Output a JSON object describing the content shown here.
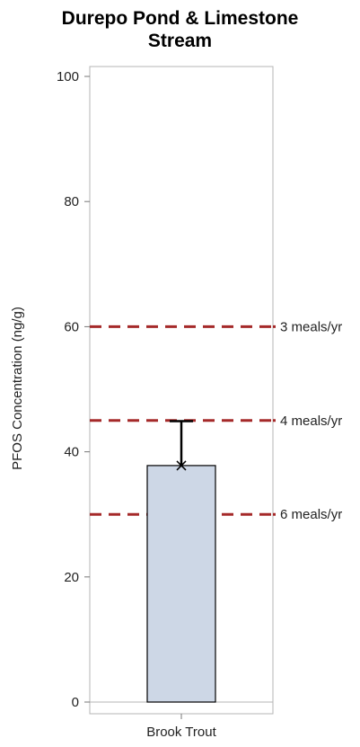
{
  "chart_data": {
    "type": "bar",
    "title_lines": [
      "Durepo Pond & Limestone",
      "Stream"
    ],
    "xlabel": "",
    "ylabel": "PFOS Concentration (ng/g)",
    "ylim": [
      0,
      100
    ],
    "yticks": [
      0,
      20,
      40,
      60,
      80,
      100
    ],
    "categories": [
      "Brook Trout"
    ],
    "values": [
      37.8
    ],
    "error_upper": [
      44.9
    ],
    "mean_marker": [
      37.8
    ],
    "bar_color": "#cdd7e6",
    "reference_lines": [
      {
        "value": 60,
        "label": "3 meals/yr"
      },
      {
        "value": 45,
        "label": "4 meals/yr"
      },
      {
        "value": 30,
        "label": "6 meals/yr"
      }
    ],
    "reference_color": "#a52a2a",
    "grid": false
  }
}
